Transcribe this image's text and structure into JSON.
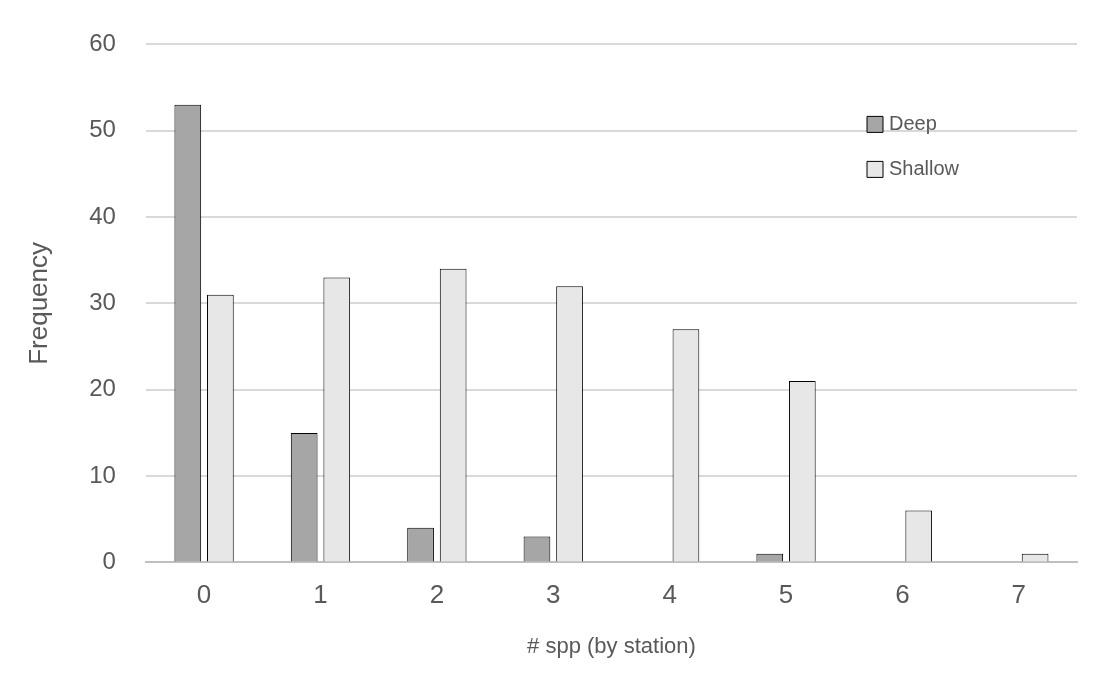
{
  "chart_data": {
    "type": "bar",
    "xlabel": "# spp (by station)",
    "ylabel": "Frequency",
    "categories": [
      "0",
      "1",
      "2",
      "3",
      "4",
      "5",
      "6",
      "7"
    ],
    "series": [
      {
        "name": "Deep",
        "color": "#a6a6a6",
        "values": [
          53,
          15,
          4,
          3,
          0,
          1,
          0,
          0
        ]
      },
      {
        "name": "Shallow",
        "color": "#e7e7e7",
        "values": [
          31,
          33,
          34,
          32,
          27,
          21,
          6,
          1
        ]
      }
    ],
    "ylim": [
      0,
      60
    ],
    "yticks": [
      0,
      10,
      20,
      30,
      40,
      50,
      60
    ],
    "grid": "y",
    "legend": "top right"
  }
}
